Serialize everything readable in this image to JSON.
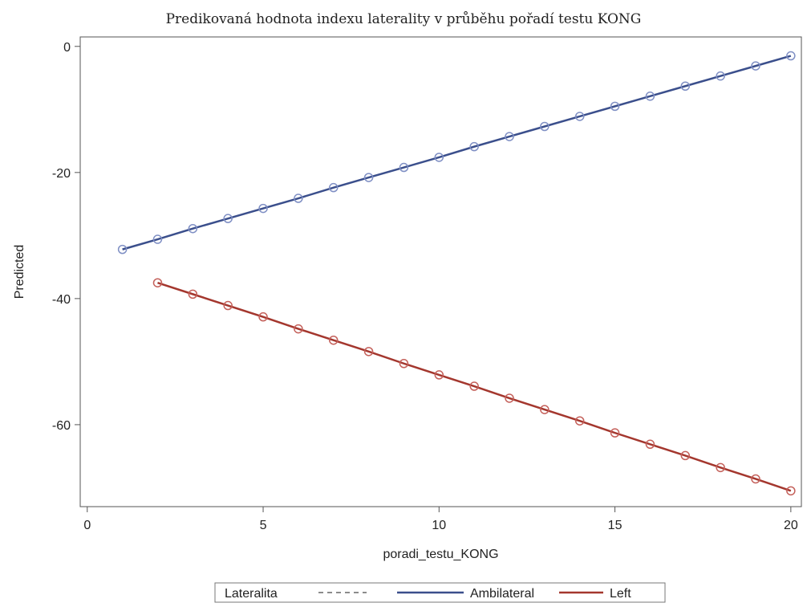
{
  "chart_data": {
    "type": "line",
    "title": "Predikovaná hodnota indexu laterality v průběhu pořadí testu KONG",
    "xlabel": "poradi_testu_KONG",
    "ylabel": "Predicted",
    "xlim": [
      -0.2,
      20.3
    ],
    "ylim": [
      -73,
      1.5
    ],
    "xticks": [
      0,
      5,
      10,
      15,
      20
    ],
    "yticks": [
      0,
      -20,
      -40,
      -60
    ],
    "grid": false,
    "legend": {
      "position": "bottom",
      "title": "Lateralita",
      "entries": [
        {
          "label": "",
          "color": "#8c8c8c",
          "style": "dashed"
        },
        {
          "label": "Ambilateral",
          "color": "#3b4f8c",
          "style": "solid"
        },
        {
          "label": "Left",
          "color": "#a4372e",
          "style": "solid"
        }
      ]
    },
    "series": [
      {
        "name": "Ambilateral",
        "color": "#3b4f8c",
        "marker_color": "#7f8fc4",
        "x": [
          1,
          2,
          3,
          4,
          5,
          6,
          7,
          8,
          9,
          10,
          11,
          12,
          13,
          14,
          15,
          16,
          17,
          18,
          19,
          20
        ],
        "y": [
          -32.2,
          -30.6,
          -28.9,
          -27.3,
          -25.7,
          -24.1,
          -22.4,
          -20.8,
          -19.2,
          -17.6,
          -15.9,
          -14.3,
          -12.7,
          -11.1,
          -9.5,
          -7.9,
          -6.3,
          -4.7,
          -3.1,
          -1.5
        ]
      },
      {
        "name": "Left",
        "color": "#a4372e",
        "marker_color": "#c4605a",
        "x": [
          2,
          3,
          4,
          5,
          6,
          7,
          8,
          9,
          10,
          11,
          12,
          13,
          14,
          15,
          16,
          17,
          18,
          19,
          20
        ],
        "y": [
          -37.5,
          -39.3,
          -41.1,
          -42.9,
          -44.8,
          -46.6,
          -48.4,
          -50.3,
          -52.1,
          -53.9,
          -55.8,
          -57.6,
          -59.4,
          -61.3,
          -63.1,
          -64.9,
          -66.8,
          -68.6,
          -70.5
        ]
      }
    ]
  }
}
